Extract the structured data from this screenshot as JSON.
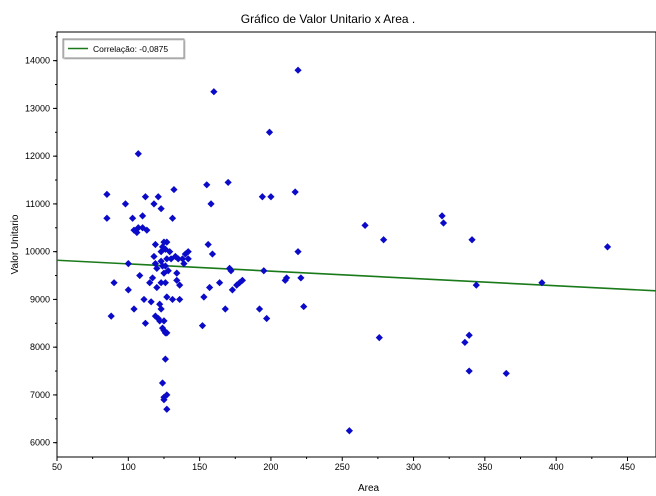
{
  "chart_data": {
    "type": "scatter",
    "title": "Gráfico de Valor Unitario x Area .",
    "xlabel": "Area",
    "ylabel": "Valor Unitario",
    "xlim": [
      50,
      470
    ],
    "ylim": [
      5700,
      14600
    ],
    "xticks": [
      50,
      100,
      150,
      200,
      250,
      300,
      350,
      400,
      450
    ],
    "yticks": [
      6000,
      7000,
      8000,
      9000,
      10000,
      11000,
      12000,
      13000,
      14000
    ],
    "grid": false,
    "legend_position": "top-left",
    "legend": [
      "Correlação: -0,0875"
    ],
    "series": [
      {
        "kind": "points",
        "color": "#0a0ac8",
        "marker": "diamond",
        "points": [
          [
            85,
            11200
          ],
          [
            85,
            10700
          ],
          [
            88,
            8650
          ],
          [
            90,
            9350
          ],
          [
            98,
            11000
          ],
          [
            100,
            9750
          ],
          [
            100,
            9200
          ],
          [
            103,
            10700
          ],
          [
            104,
            10450
          ],
          [
            104,
            8800
          ],
          [
            106,
            10400
          ],
          [
            107,
            12050
          ],
          [
            107,
            10500
          ],
          [
            108,
            9500
          ],
          [
            110,
            10750
          ],
          [
            110,
            10500
          ],
          [
            111,
            9000
          ],
          [
            112,
            11150
          ],
          [
            112,
            8500
          ],
          [
            113,
            10450
          ],
          [
            115,
            9350
          ],
          [
            116,
            8950
          ],
          [
            117,
            9450
          ],
          [
            118,
            11000
          ],
          [
            118,
            9900
          ],
          [
            119,
            10150
          ],
          [
            119,
            9750
          ],
          [
            119,
            8650
          ],
          [
            120,
            9650
          ],
          [
            120,
            9250
          ],
          [
            121,
            11150
          ],
          [
            121,
            8600
          ],
          [
            122,
            8900
          ],
          [
            122,
            8550
          ],
          [
            123,
            10900
          ],
          [
            123,
            10000
          ],
          [
            123,
            9800
          ],
          [
            123,
            9350
          ],
          [
            123,
            8800
          ],
          [
            124,
            10100
          ],
          [
            124,
            9700
          ],
          [
            124,
            8400
          ],
          [
            124,
            7250
          ],
          [
            125,
            10200
          ],
          [
            125,
            9550
          ],
          [
            125,
            8550
          ],
          [
            125,
            8350
          ],
          [
            125,
            6950
          ],
          [
            125,
            6900
          ],
          [
            126,
            10050
          ],
          [
            126,
            9700
          ],
          [
            126,
            9350
          ],
          [
            126,
            8300
          ],
          [
            126,
            7750
          ],
          [
            127,
            10200
          ],
          [
            127,
            9850
          ],
          [
            127,
            9050
          ],
          [
            127,
            8300
          ],
          [
            127,
            7000
          ],
          [
            127,
            6700
          ],
          [
            128,
            9600
          ],
          [
            129,
            10000
          ],
          [
            130,
            9850
          ],
          [
            131,
            10700
          ],
          [
            131,
            9000
          ],
          [
            132,
            11300
          ],
          [
            133,
            9900
          ],
          [
            134,
            9550
          ],
          [
            134,
            9400
          ],
          [
            135,
            9850
          ],
          [
            136,
            9300
          ],
          [
            136,
            9000
          ],
          [
            138,
            9850
          ],
          [
            139,
            9750
          ],
          [
            140,
            9950
          ],
          [
            142,
            9850
          ],
          [
            142,
            10000
          ],
          [
            152,
            8450
          ],
          [
            153,
            9050
          ],
          [
            155,
            11400
          ],
          [
            156,
            10150
          ],
          [
            157,
            9250
          ],
          [
            158,
            11000
          ],
          [
            159,
            9950
          ],
          [
            160,
            13350
          ],
          [
            164,
            9350
          ],
          [
            168,
            8800
          ],
          [
            170,
            11450
          ],
          [
            171,
            9650
          ],
          [
            172,
            9600
          ],
          [
            173,
            9200
          ],
          [
            176,
            9300
          ],
          [
            178,
            9350
          ],
          [
            180,
            9400
          ],
          [
            192,
            8800
          ],
          [
            194,
            11150
          ],
          [
            195,
            9600
          ],
          [
            197,
            8600
          ],
          [
            199,
            12500
          ],
          [
            200,
            11150
          ],
          [
            210,
            9400
          ],
          [
            211,
            9450
          ],
          [
            217,
            11250
          ],
          [
            219,
            13800
          ],
          [
            219,
            10000
          ],
          [
            221,
            9450
          ],
          [
            223,
            8850
          ],
          [
            255,
            6250
          ],
          [
            266,
            10550
          ],
          [
            276,
            8200
          ],
          [
            279,
            10250
          ],
          [
            320,
            10750
          ],
          [
            321,
            10600
          ],
          [
            336,
            8100
          ],
          [
            339,
            8250
          ],
          [
            339,
            7500
          ],
          [
            341,
            10250
          ],
          [
            344,
            9300
          ],
          [
            365,
            7450
          ],
          [
            390,
            9350
          ],
          [
            436,
            10100
          ]
        ]
      },
      {
        "kind": "line",
        "name": "Correlação: -0,0875",
        "color": "#1a7a1a",
        "x": [
          50,
          470
        ],
        "y": [
          9820,
          9180
        ]
      }
    ]
  }
}
